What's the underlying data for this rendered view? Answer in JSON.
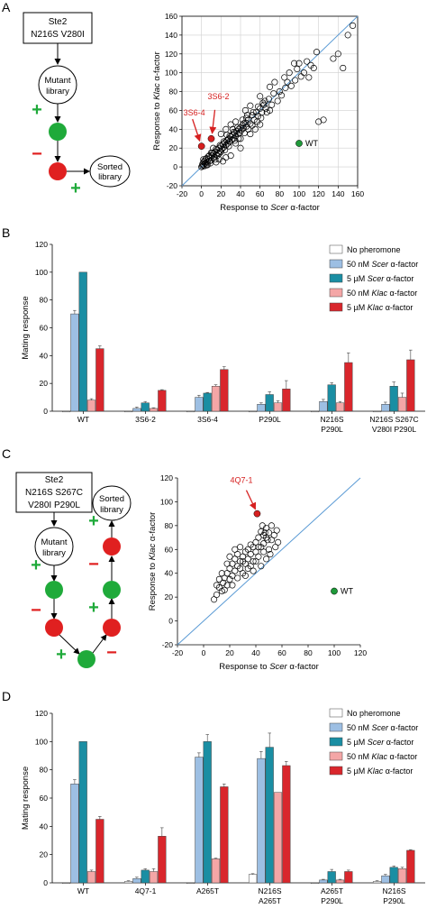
{
  "panels": {
    "A": {
      "letter": "A",
      "flow": {
        "box_lines": [
          "Ste2",
          "N216S V280I"
        ],
        "mutant_lines": [
          "Mutant",
          "library"
        ],
        "sorted_lines": [
          "Sorted",
          "library"
        ],
        "plus": "+",
        "minus": "−"
      }
    },
    "B": {
      "letter": "B"
    },
    "C": {
      "letter": "C",
      "flow": {
        "box_lines": [
          "Ste2",
          "N216S S267C",
          "V280I P290L"
        ],
        "mutant_lines": [
          "Mutant",
          "library"
        ],
        "sorted_lines": [
          "Sorted",
          "library"
        ],
        "plus": "+",
        "minus": "−"
      }
    },
    "D": {
      "letter": "D"
    }
  },
  "colors": {
    "green_node": "#1faa3a",
    "red_node": "#e02020",
    "diagonal": "#5b9bd5",
    "annotation": "#d62020",
    "wt_point": "#1f9a3a"
  },
  "chart_data": [
    {
      "id": "A",
      "type": "scatter",
      "xlabel_parts": [
        "Response to ",
        "Scer",
        " α-factor"
      ],
      "ylabel_parts": [
        "Response to ",
        "Klac",
        " α-factor"
      ],
      "xlim": [
        -20,
        160
      ],
      "ylim": [
        -20,
        160
      ],
      "xticks": [
        -20,
        0,
        20,
        40,
        60,
        80,
        100,
        120,
        140,
        160
      ],
      "yticks": [
        -20,
        0,
        20,
        40,
        60,
        80,
        100,
        120,
        140,
        160
      ],
      "grid": true,
      "diagonal": "y=x",
      "points": [
        [
          0,
          0
        ],
        [
          1,
          1
        ],
        [
          2,
          2
        ],
        [
          3,
          1
        ],
        [
          1,
          3
        ],
        [
          4,
          4
        ],
        [
          2,
          5
        ],
        [
          5,
          2
        ],
        [
          3,
          6
        ],
        [
          6,
          5
        ],
        [
          7,
          8
        ],
        [
          5,
          9
        ],
        [
          8,
          6
        ],
        [
          9,
          10
        ],
        [
          10,
          7
        ],
        [
          11,
          12
        ],
        [
          12,
          14
        ],
        [
          13,
          10
        ],
        [
          14,
          16
        ],
        [
          15,
          13
        ],
        [
          16,
          18
        ],
        [
          17,
          15
        ],
        [
          18,
          20
        ],
        [
          19,
          17
        ],
        [
          20,
          22
        ],
        [
          21,
          19
        ],
        [
          22,
          24
        ],
        [
          23,
          21
        ],
        [
          24,
          26
        ],
        [
          25,
          23
        ],
        [
          26,
          28
        ],
        [
          27,
          25
        ],
        [
          28,
          30
        ],
        [
          29,
          27
        ],
        [
          30,
          32
        ],
        [
          31,
          29
        ],
        [
          32,
          34
        ],
        [
          33,
          30
        ],
        [
          34,
          36
        ],
        [
          35,
          33
        ],
        [
          36,
          38
        ],
        [
          37,
          35
        ],
        [
          38,
          40
        ],
        [
          39,
          36
        ],
        [
          40,
          42
        ],
        [
          41,
          39
        ],
        [
          42,
          44
        ],
        [
          43,
          41
        ],
        [
          45,
          47
        ],
        [
          46,
          43
        ],
        [
          48,
          50
        ],
        [
          50,
          46
        ],
        [
          52,
          55
        ],
        [
          54,
          50
        ],
        [
          56,
          58
        ],
        [
          58,
          54
        ],
        [
          60,
          62
        ],
        [
          62,
          58
        ],
        [
          64,
          66
        ],
        [
          66,
          62
        ],
        [
          25,
          10
        ],
        [
          30,
          12
        ],
        [
          40,
          20
        ],
        [
          20,
          35
        ],
        [
          25,
          40
        ],
        [
          30,
          45
        ],
        [
          35,
          48
        ],
        [
          45,
          60
        ],
        [
          50,
          65
        ],
        [
          55,
          40
        ],
        [
          60,
          75
        ],
        [
          65,
          70
        ],
        [
          70,
          60
        ],
        [
          70,
          85
        ],
        [
          75,
          90
        ],
        [
          80,
          80
        ],
        [
          85,
          95
        ],
        [
          90,
          100
        ],
        [
          95,
          110
        ],
        [
          100,
          110
        ],
        [
          105,
          100
        ],
        [
          110,
          95
        ],
        [
          115,
          105
        ],
        [
          120,
          48
        ],
        [
          125,
          50
        ],
        [
          135,
          115
        ],
        [
          140,
          120
        ],
        [
          145,
          105
        ],
        [
          150,
          140
        ],
        [
          155,
          150
        ],
        [
          15,
          5
        ],
        [
          18,
          8
        ],
        [
          22,
          6
        ],
        [
          35,
          25
        ],
        [
          40,
          30
        ],
        [
          50,
          35
        ],
        [
          60,
          45
        ],
        [
          10,
          15
        ],
        [
          12,
          20
        ],
        [
          8,
          12
        ],
        [
          26,
          34
        ],
        [
          28,
          22
        ],
        [
          32,
          40
        ],
        [
          34,
          28
        ],
        [
          38,
          30
        ],
        [
          42,
          50
        ],
        [
          44,
          36
        ],
        [
          46,
          52
        ],
        [
          48,
          40
        ],
        [
          52,
          44
        ],
        [
          57,
          48
        ],
        [
          61,
          52
        ],
        [
          63,
          68
        ],
        [
          67,
          58
        ],
        [
          69,
          72
        ],
        [
          72,
          66
        ],
        [
          74,
          78
        ],
        [
          78,
          70
        ],
        [
          82,
          76
        ],
        [
          86,
          84
        ],
        [
          88,
          90
        ],
        [
          92,
          86
        ],
        [
          96,
          92
        ],
        [
          98,
          104
        ],
        [
          102,
          96
        ],
        [
          108,
          112
        ],
        [
          112,
          108
        ],
        [
          118,
          122
        ],
        [
          58,
          64
        ],
        [
          53,
          58
        ],
        [
          47,
          55
        ],
        [
          43,
          46
        ],
        [
          37,
          42
        ],
        [
          33,
          37
        ],
        [
          29,
          33
        ],
        [
          27,
          29
        ],
        [
          23,
          27
        ],
        [
          19,
          23
        ],
        [
          15,
          19
        ],
        [
          11,
          15
        ],
        [
          7,
          11
        ],
        [
          4,
          8
        ],
        [
          2,
          8
        ],
        [
          6,
          2
        ],
        [
          9,
          4
        ],
        [
          14,
          8
        ],
        [
          16,
          12
        ],
        [
          18,
          14
        ],
        [
          20,
          16
        ],
        [
          24,
          18
        ]
      ],
      "highlight": [
        {
          "label": "3S6-2",
          "x": 10,
          "y": 30,
          "color": "#d62020"
        },
        {
          "label": "3S6-4",
          "x": 0,
          "y": 22,
          "color": "#d62020"
        },
        {
          "label": "WT",
          "x": 100,
          "y": 25,
          "color": "#1f9a3a"
        }
      ]
    },
    {
      "id": "B",
      "type": "bar",
      "ylabel": "Mating response",
      "ylim": [
        0,
        120
      ],
      "yticks": [
        0,
        20,
        40,
        60,
        80,
        100,
        120
      ],
      "categories": [
        [
          "WT"
        ],
        [
          "3S6-2"
        ],
        [
          "3S6-4"
        ],
        [
          "P290L"
        ],
        [
          "N216S",
          "P290L"
        ],
        [
          "N216S S267C",
          "V280I P290L"
        ]
      ],
      "series": [
        {
          "name": "No pheromone",
          "color": "#ffffff",
          "values": [
            0,
            0,
            0,
            0,
            0,
            0
          ],
          "err": [
            0,
            0,
            0,
            0,
            0,
            0
          ]
        },
        {
          "name_parts": [
            "50 nM ",
            "Scer",
            " α-factor"
          ],
          "color": "#9dbfe3",
          "values": [
            70,
            2,
            10,
            5,
            7,
            5
          ],
          "err": [
            2.5,
            1,
            1.5,
            1,
            1.5,
            1.5
          ]
        },
        {
          "name_parts": [
            "5 µM ",
            "Scer",
            " α-factor"
          ],
          "color": "#1a8ea3",
          "values": [
            100,
            6,
            13,
            12,
            19,
            18
          ],
          "err": [
            0,
            1,
            0.5,
            2,
            1.5,
            3
          ]
        },
        {
          "name_parts": [
            "50 nM ",
            "Klac",
            " α-factor"
          ],
          "color": "#f4a6a6",
          "values": [
            8,
            2,
            18,
            6,
            6,
            10
          ],
          "err": [
            1,
            0.5,
            1,
            1.5,
            1,
            3
          ]
        },
        {
          "name_parts": [
            "5 µM ",
            "Klac",
            " α-factor"
          ],
          "color": "#d9262c",
          "values": [
            45,
            15,
            30,
            16,
            35,
            37
          ],
          "err": [
            2,
            0.5,
            2,
            6,
            7,
            7
          ]
        }
      ]
    },
    {
      "id": "C",
      "type": "scatter",
      "xlabel_parts": [
        "Response to ",
        "Scer",
        " α-factor"
      ],
      "ylabel_parts": [
        "Response to ",
        "Klac",
        " α-factor"
      ],
      "xlim": [
        -20,
        120
      ],
      "ylim": [
        -20,
        120
      ],
      "xticks": [
        -20,
        0,
        20,
        40,
        60,
        80,
        100,
        120
      ],
      "yticks": [
        -20,
        0,
        20,
        40,
        60,
        80,
        100,
        120
      ],
      "grid": false,
      "diagonal": "y=x",
      "points": [
        [
          8,
          18
        ],
        [
          10,
          22
        ],
        [
          12,
          28
        ],
        [
          14,
          25
        ],
        [
          15,
          32
        ],
        [
          16,
          36
        ],
        [
          18,
          30
        ],
        [
          18,
          40
        ],
        [
          20,
          35
        ],
        [
          20,
          44
        ],
        [
          22,
          38
        ],
        [
          22,
          48
        ],
        [
          24,
          42
        ],
        [
          24,
          52
        ],
        [
          26,
          46
        ],
        [
          26,
          56
        ],
        [
          28,
          50
        ],
        [
          28,
          44
        ],
        [
          30,
          54
        ],
        [
          30,
          40
        ],
        [
          32,
          58
        ],
        [
          32,
          48
        ],
        [
          34,
          52
        ],
        [
          34,
          60
        ],
        [
          36,
          56
        ],
        [
          36,
          46
        ],
        [
          38,
          62
        ],
        [
          38,
          50
        ],
        [
          40,
          58
        ],
        [
          40,
          66
        ],
        [
          42,
          54
        ],
        [
          42,
          70
        ],
        [
          44,
          62
        ],
        [
          44,
          75
        ],
        [
          46,
          65
        ],
        [
          46,
          58
        ],
        [
          48,
          70
        ],
        [
          48,
          78
        ],
        [
          50,
          60
        ],
        [
          50,
          74
        ],
        [
          52,
          68
        ],
        [
          52,
          80
        ],
        [
          54,
          72
        ],
        [
          55,
          62
        ],
        [
          56,
          76
        ],
        [
          57,
          66
        ],
        [
          45,
          80
        ],
        [
          47,
          74
        ],
        [
          49,
          68
        ],
        [
          51,
          56
        ],
        [
          10,
          30
        ],
        [
          12,
          35
        ],
        [
          14,
          40
        ],
        [
          16,
          26
        ],
        [
          18,
          48
        ],
        [
          20,
          54
        ],
        [
          22,
          30
        ],
        [
          24,
          60
        ],
        [
          26,
          36
        ],
        [
          28,
          62
        ],
        [
          30,
          50
        ],
        [
          32,
          38
        ],
        [
          34,
          44
        ],
        [
          36,
          64
        ],
        [
          38,
          42
        ],
        [
          40,
          50
        ],
        [
          42,
          62
        ],
        [
          44,
          46
        ],
        [
          46,
          72
        ],
        [
          48,
          52
        ]
      ],
      "highlight": [
        {
          "label": "4Q7-1",
          "x": 41,
          "y": 90,
          "color": "#d62020"
        },
        {
          "label": "WT",
          "x": 100,
          "y": 25,
          "color": "#1f9a3a"
        }
      ]
    },
    {
      "id": "D",
      "type": "bar",
      "ylabel": "Mating response",
      "ylim": [
        0,
        120
      ],
      "yticks": [
        0,
        20,
        40,
        60,
        80,
        100,
        120
      ],
      "categories": [
        [
          "WT"
        ],
        [
          "4Q7-1"
        ],
        [
          "A265T"
        ],
        [
          "N216S",
          "A265T"
        ],
        [
          "A265T",
          "P290L"
        ],
        [
          "N216S",
          "P290L"
        ]
      ],
      "series": [
        {
          "name": "No pheromone",
          "color": "#ffffff",
          "values": [
            0,
            1,
            0,
            6,
            0,
            1
          ],
          "err": [
            0,
            0.5,
            0,
            0.5,
            0,
            0.5
          ]
        },
        {
          "name_parts": [
            "50 nM ",
            "Scer",
            " α-factor"
          ],
          "color": "#9dbfe3",
          "values": [
            70,
            3,
            89,
            88,
            2,
            5
          ],
          "err": [
            3,
            1,
            3,
            5,
            0.5,
            1
          ]
        },
        {
          "name_parts": [
            "5 µM ",
            "Scer",
            " α-factor"
          ],
          "color": "#1a8ea3",
          "values": [
            100,
            9,
            100,
            96,
            8,
            11
          ],
          "err": [
            0,
            1,
            5,
            10,
            1.5,
            1
          ]
        },
        {
          "name_parts": [
            "50 nM ",
            "Klac",
            " α-factor"
          ],
          "color": "#f4a6a6",
          "values": [
            8,
            8,
            17,
            64,
            2,
            10
          ],
          "err": [
            1,
            2,
            0.5,
            0,
            0.5,
            1
          ]
        },
        {
          "name_parts": [
            "5 µM ",
            "Klac",
            " α-factor"
          ],
          "color": "#d9262c",
          "values": [
            45,
            33,
            68,
            83,
            8,
            23
          ],
          "err": [
            2,
            6,
            2,
            3,
            1,
            0.5
          ]
        }
      ]
    }
  ]
}
